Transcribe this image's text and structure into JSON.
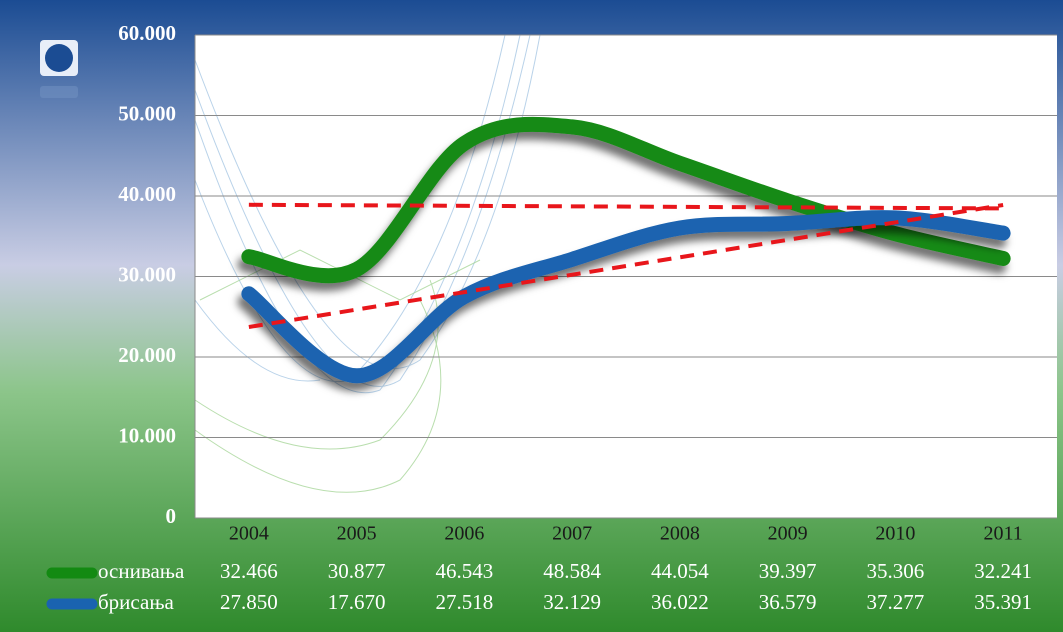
{
  "chart_data": {
    "type": "line",
    "categories": [
      "2004",
      "2005",
      "2006",
      "2007",
      "2008",
      "2009",
      "2010",
      "2011"
    ],
    "series": [
      {
        "name": "оснивања",
        "color": "#138a12",
        "values": [
          32466,
          30877,
          46543,
          48584,
          44054,
          39397,
          35306,
          32241
        ],
        "value_labels": [
          "32.466",
          "30.877",
          "46.543",
          "48.584",
          "44.054",
          "39.397",
          "35.306",
          "32.241"
        ]
      },
      {
        "name": "брисања",
        "color": "#1a63b0",
        "values": [
          27850,
          17670,
          27518,
          32129,
          36022,
          36579,
          37277,
          35391
        ],
        "value_labels": [
          "27.850",
          "17.670",
          "27.518",
          "32.129",
          "36.022",
          "36.579",
          "37.277",
          "35.391"
        ]
      }
    ],
    "ylim": [
      0,
      60000
    ],
    "yticks": [
      0,
      {
        "value": 10000,
        "label": "10.000"
      },
      {
        "value": 20000,
        "label": "20.000"
      },
      {
        "value": 30000,
        "label": "30.000"
      },
      {
        "value": 40000,
        "label": "40.000"
      },
      {
        "value": 50000,
        "label": "50.000"
      },
      {
        "value": 60000,
        "label": "60.000"
      }
    ],
    "grid": true,
    "trendline": true,
    "trendline_color": "#e8161b"
  }
}
